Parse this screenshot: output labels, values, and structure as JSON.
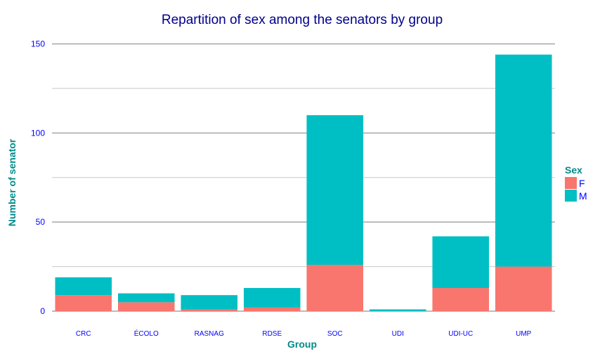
{
  "colors": {
    "F": "#f8766d",
    "M": "#00bfc4",
    "grid_major": "#a6a6a6",
    "grid_minor": "#c8c8c8",
    "title": "#00008b",
    "axis_title": "#008b8b",
    "tick": "#0000ff"
  },
  "chart_data": {
    "type": "bar",
    "stacked": true,
    "title": "Repartition of sex among the senators by group",
    "xlabel": "Group",
    "ylabel": "Number of senator",
    "categories": [
      "CRC",
      "ÉCOLO",
      "RASNAG",
      "RDSE",
      "SOC",
      "UDI",
      "UDI-UC",
      "UMP"
    ],
    "series": [
      {
        "name": "F",
        "values": [
          9,
          5,
          1,
          2,
          26,
          0,
          13,
          25
        ]
      },
      {
        "name": "M",
        "values": [
          10,
          5,
          8,
          11,
          84,
          1,
          29,
          119
        ]
      }
    ],
    "ylim": [
      0,
      150
    ],
    "yticks": [
      "0",
      "50",
      "100",
      "150"
    ],
    "grid": true,
    "legend": {
      "title": "Sex",
      "position": "right"
    }
  }
}
